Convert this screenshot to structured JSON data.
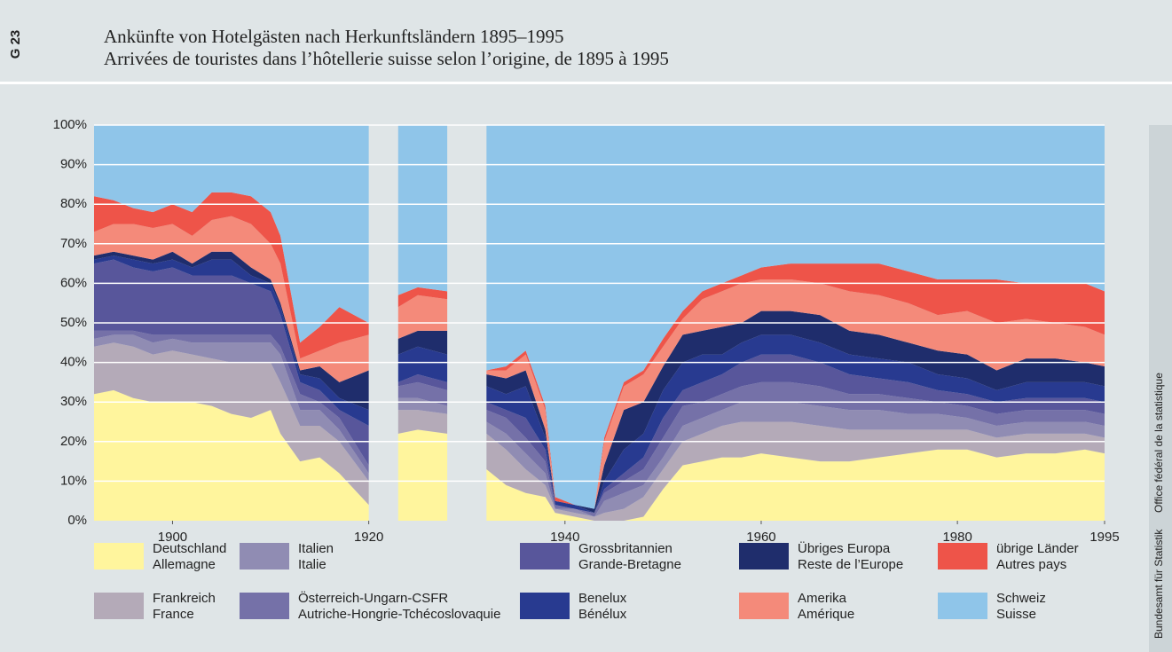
{
  "chart_data": {
    "type": "area",
    "stacked": true,
    "figure_id": "G 23",
    "title": "Ankünfte von Hotelgästen nach Herkunftsländern 1895–1995",
    "subtitle": "Arrivées de touristes dans l’hôtellerie suisse selon l’origine, de 1895 à 1995",
    "source": [
      "Bundesamt für Statistik",
      "Office fédéral de la statistique"
    ],
    "x": [
      1892,
      1894,
      1896,
      1898,
      1900,
      1902,
      1904,
      1906,
      1908,
      1910,
      1911,
      1913,
      1915,
      1917,
      1920,
      1921,
      1923,
      1925,
      1928,
      1930,
      1932,
      1934,
      1936,
      1938,
      1939,
      1941,
      1943,
      1944,
      1946,
      1948,
      1950,
      1952,
      1954,
      1956,
      1958,
      1960,
      1963,
      1966,
      1969,
      1972,
      1975,
      1978,
      1981,
      1984,
      1987,
      1990,
      1993,
      1995
    ],
    "xlim": [
      1892,
      1995
    ],
    "xticks": [
      1900,
      1920,
      1940,
      1960,
      1980,
      1995
    ],
    "ylim": [
      0,
      100
    ],
    "yticks": [
      {
        "value": 0,
        "label": "0%"
      },
      {
        "value": 10,
        "label": "10%"
      },
      {
        "value": 20,
        "label": "20%"
      },
      {
        "value": 30,
        "label": "30%"
      },
      {
        "value": 40,
        "label": "40%"
      },
      {
        "value": 50,
        "label": "50%"
      },
      {
        "value": 60,
        "label": "60%"
      },
      {
        "value": 70,
        "label": "70%"
      },
      {
        "value": 80,
        "label": "80%"
      },
      {
        "value": 90,
        "label": "90%"
      },
      {
        "value": 100,
        "label": "100%"
      }
    ],
    "grid": true,
    "series": [
      {
        "name": "Deutschland",
        "name_fr": "Allemagne",
        "color": "#fff59d",
        "values": [
          32,
          33,
          31,
          30,
          30,
          30,
          29,
          27,
          26,
          28,
          22,
          15,
          16,
          12,
          4,
          null,
          22,
          23,
          22,
          null,
          13,
          9,
          7,
          6,
          2,
          1,
          0,
          0,
          0,
          1,
          8,
          14,
          15,
          16,
          16,
          17,
          16,
          15,
          15,
          16,
          17,
          18,
          18,
          16,
          17,
          17,
          18,
          17
        ]
      },
      {
        "name": "Frankreich",
        "name_fr": "France",
        "color": "#b4aab8",
        "values": [
          12,
          12,
          13,
          12,
          13,
          12,
          12,
          13,
          14,
          12,
          13,
          9,
          8,
          8,
          6,
          null,
          6,
          5,
          5,
          null,
          9,
          9,
          6,
          3,
          1,
          1,
          1,
          2,
          3,
          5,
          5,
          6,
          7,
          8,
          9,
          8,
          9,
          9,
          8,
          7,
          6,
          5,
          5,
          5,
          5,
          5,
          4,
          4
        ]
      },
      {
        "name": "Italien",
        "name_fr": "Italie",
        "color": "#908cb3",
        "values": [
          2,
          2,
          3,
          3,
          3,
          3,
          4,
          5,
          5,
          5,
          7,
          4,
          4,
          3,
          2,
          null,
          3,
          3,
          2,
          null,
          3,
          4,
          4,
          3,
          0,
          1,
          0,
          3,
          4,
          3,
          3,
          4,
          4,
          4,
          5,
          5,
          5,
          5,
          5,
          5,
          4,
          4,
          3,
          3,
          3,
          3,
          3,
          3
        ]
      },
      {
        "name": "Österreich-Ungarn-CSFR",
        "name_fr": "Autriche-Hongrie-Tchécoslovaquie",
        "color": "#7571a8",
        "values": [
          2,
          1,
          1,
          2,
          1,
          2,
          2,
          2,
          2,
          2,
          2,
          4,
          2,
          3,
          2,
          null,
          3,
          4,
          4,
          null,
          3,
          4,
          4,
          3,
          1,
          0,
          1,
          2,
          3,
          4,
          5,
          5,
          4,
          4,
          4,
          5,
          5,
          5,
          4,
          4,
          4,
          3,
          3,
          3,
          3,
          3,
          3,
          3
        ]
      },
      {
        "name": "Grossbritannien",
        "name_fr": "Grande-Bretagne",
        "color": "#58569b",
        "values": [
          17,
          18,
          16,
          16,
          17,
          15,
          15,
          15,
          13,
          11,
          8,
          3,
          3,
          2,
          10,
          null,
          1,
          2,
          2,
          null,
          2,
          2,
          5,
          3,
          0,
          0,
          0,
          1,
          2,
          3,
          5,
          4,
          5,
          5,
          6,
          7,
          7,
          6,
          5,
          4,
          4,
          3,
          3,
          3,
          3,
          3,
          3,
          3
        ]
      },
      {
        "name": "Benelux",
        "name_fr": "Bénélux",
        "color": "#283a90",
        "values": [
          1,
          1,
          2,
          2,
          2,
          2,
          4,
          4,
          2,
          2,
          2,
          2,
          3,
          3,
          4,
          null,
          7,
          7,
          7,
          null,
          4,
          4,
          8,
          3,
          1,
          1,
          0,
          2,
          6,
          6,
          7,
          7,
          7,
          5,
          5,
          5,
          5,
          5,
          5,
          5,
          5,
          4,
          4,
          3,
          4,
          4,
          4,
          4
        ]
      },
      {
        "name": "Übriges Europa",
        "name_fr": "Reste de l’Europe",
        "color": "#1f2d6c",
        "values": [
          1,
          1,
          1,
          1,
          2,
          1,
          2,
          2,
          2,
          1,
          1,
          1,
          3,
          4,
          10,
          null,
          4,
          4,
          6,
          null,
          3,
          4,
          4,
          2,
          0,
          0,
          1,
          4,
          10,
          8,
          6,
          7,
          6,
          7,
          5,
          6,
          6,
          7,
          6,
          6,
          5,
          6,
          6,
          5,
          6,
          6,
          5,
          5
        ]
      },
      {
        "name": "Amerika",
        "name_fr": "Amérique",
        "color": "#f48a7a",
        "values": [
          6,
          7,
          8,
          8,
          7,
          7,
          8,
          9,
          11,
          9,
          10,
          3,
          4,
          10,
          9,
          null,
          8,
          9,
          8,
          null,
          1,
          2,
          4,
          5,
          0,
          0,
          0,
          6,
          6,
          7,
          5,
          4,
          8,
          9,
          10,
          8,
          8,
          8,
          10,
          10,
          10,
          9,
          11,
          12,
          10,
          9,
          9,
          8
        ]
      },
      {
        "name": "übrige Länder",
        "name_fr": "Autres pays",
        "color": "#ee5449",
        "values": [
          9,
          6,
          4,
          4,
          5,
          6,
          7,
          6,
          7,
          8,
          7,
          4,
          6,
          9,
          3,
          null,
          3,
          2,
          2,
          null,
          0,
          1,
          1,
          1,
          1,
          0,
          0,
          1,
          1,
          1,
          2,
          2,
          2,
          2,
          2,
          3,
          4,
          5,
          7,
          8,
          8,
          9,
          8,
          11,
          9,
          10,
          11,
          11
        ]
      },
      {
        "name": "Schweiz",
        "name_fr": "Suisse",
        "color": "#8fc5e9",
        "values": [
          18,
          19,
          21,
          22,
          20,
          22,
          17,
          17,
          18,
          22,
          28,
          55,
          51,
          46,
          50,
          null,
          43,
          41,
          42,
          null,
          62,
          61,
          57,
          71,
          94,
          96,
          97,
          79,
          65,
          62,
          54,
          47,
          42,
          40,
          38,
          36,
          35,
          35,
          35,
          35,
          37,
          39,
          39,
          39,
          40,
          40,
          40,
          42
        ]
      }
    ]
  }
}
